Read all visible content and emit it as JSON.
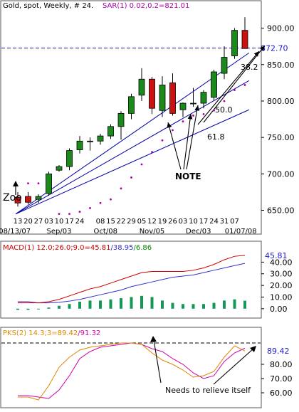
{
  "chart_data": [
    {
      "type": "candlestick",
      "header": {
        "symbol": "Gold, spot",
        "interval": "Weekly",
        "count": "# 24.",
        "study": "SAR(1) 0.02,0.2=821.01"
      },
      "ylim": [
        630,
        925
      ],
      "yticks": [
        "900.00",
        "850.00",
        "800.00",
        "750.00",
        "700.00",
        "650.00"
      ],
      "price_label": "872.70",
      "price_line": 872.7,
      "x_tick_labels": [
        "13",
        "20",
        "27",
        "03",
        "10",
        "17",
        "24",
        "08",
        "15",
        "22",
        "29",
        "05",
        "12",
        "19",
        "26",
        "03",
        "10",
        "17",
        "24",
        "31",
        "07"
      ],
      "x_month_labels": [
        "08/13/07",
        "Sep/03",
        "Oct/08",
        "Nov/05",
        "Dec/03",
        "01/07/08"
      ],
      "candles": [
        {
          "date": "08/13/07",
          "open": 668,
          "high": 675,
          "low": 655,
          "close": 660
        },
        {
          "date": "08/20/07",
          "open": 669,
          "high": 675,
          "low": 658,
          "close": 661
        },
        {
          "date": "08/27/07",
          "open": 665,
          "high": 672,
          "low": 660,
          "close": 669
        },
        {
          "date": "09/03/07",
          "open": 673,
          "high": 703,
          "low": 670,
          "close": 700
        },
        {
          "date": "09/10/07",
          "open": 705,
          "high": 712,
          "low": 703,
          "close": 710
        },
        {
          "date": "09/17/07",
          "open": 710,
          "high": 735,
          "low": 705,
          "close": 732
        },
        {
          "date": "09/24/07",
          "open": 733,
          "high": 752,
          "low": 728,
          "close": 745
        },
        {
          "date": "10/01/07",
          "open": 745,
          "high": 750,
          "low": 732,
          "close": 745
        },
        {
          "date": "10/08/07",
          "open": 745,
          "high": 755,
          "low": 740,
          "close": 752
        },
        {
          "date": "10/15/07",
          "open": 752,
          "high": 768,
          "low": 748,
          "close": 765
        },
        {
          "date": "10/22/07",
          "open": 765,
          "high": 786,
          "low": 747,
          "close": 783
        },
        {
          "date": "10/29/07",
          "open": 783,
          "high": 810,
          "low": 775,
          "close": 806
        },
        {
          "date": "11/05/07",
          "open": 808,
          "high": 845,
          "low": 800,
          "close": 830
        },
        {
          "date": "11/12/07",
          "open": 830,
          "high": 833,
          "low": 782,
          "close": 790
        },
        {
          "date": "11/19/07",
          "open": 787,
          "high": 834,
          "low": 778,
          "close": 822
        },
        {
          "date": "11/26/07",
          "open": 825,
          "high": 838,
          "low": 780,
          "close": 783
        },
        {
          "date": "12/03/07",
          "open": 788,
          "high": 798,
          "low": 778,
          "close": 797
        },
        {
          "date": "12/10/07",
          "open": 797,
          "high": 818,
          "low": 792,
          "close": 797
        },
        {
          "date": "12/17/07",
          "open": 797,
          "high": 815,
          "low": 790,
          "close": 812
        },
        {
          "date": "12/24/07",
          "open": 805,
          "high": 843,
          "low": 800,
          "close": 840
        },
        {
          "date": "12/31/07",
          "open": 838,
          "high": 875,
          "low": 830,
          "close": 860
        },
        {
          "date": "01/07/08",
          "open": 862,
          "high": 900,
          "low": 858,
          "close": 897
        },
        {
          "date": "01/14/08",
          "open": 897,
          "high": 915,
          "low": 872,
          "close": 872
        }
      ],
      "sar": [
        {
          "i": 1,
          "v": 687
        },
        {
          "i": 2,
          "v": 687
        },
        {
          "i": 4,
          "v": 645
        },
        {
          "i": 5,
          "v": 645
        },
        {
          "i": 6,
          "v": 648
        },
        {
          "i": 7,
          "v": 653
        },
        {
          "i": 8,
          "v": 660
        },
        {
          "i": 9,
          "v": 665
        },
        {
          "i": 10,
          "v": 680
        },
        {
          "i": 11,
          "v": 695
        },
        {
          "i": 12,
          "v": 713
        },
        {
          "i": 13,
          "v": 730
        },
        {
          "i": 14,
          "v": 746
        },
        {
          "i": 15,
          "v": 760
        },
        {
          "i": 16,
          "v": 772
        },
        {
          "i": 17,
          "v": 780
        },
        {
          "i": 18,
          "v": 782
        },
        {
          "i": 19,
          "v": 787
        },
        {
          "i": 20,
          "v": 800
        },
        {
          "i": 21,
          "v": 815
        },
        {
          "i": 22,
          "v": 822
        }
      ],
      "fan_lines": {
        "origin": {
          "i": -0.2,
          "v": 645
        },
        "ends": [
          {
            "i": 22.4,
            "v": 866
          },
          {
            "i": 22.4,
            "v": 828
          },
          {
            "i": 22.4,
            "v": 788
          }
        ],
        "labels": [
          "38.2",
          "50.0",
          "61.8"
        ]
      },
      "annotation": "NOTE",
      "zoom_label": "Zoo"
    },
    {
      "type": "line+bar",
      "header": {
        "name": "MACD(1) 12.0;26.0;9.0=45.81",
        "v2": "/38.95",
        "v3": "/6.86"
      },
      "ylim": [
        -5,
        50
      ],
      "yticks": [
        "40.00",
        "30.00",
        "20.00",
        "10.00",
        "0.00"
      ],
      "value_label": "45.81",
      "macd": [
        5,
        5,
        5,
        6,
        8,
        11,
        14,
        17,
        19,
        22,
        25,
        28,
        31,
        32,
        32,
        32,
        32,
        33,
        35,
        38,
        42,
        45,
        45.8
      ],
      "signal": [
        6,
        6,
        5,
        5,
        5.5,
        6.5,
        8,
        10,
        12,
        14,
        16,
        19,
        21,
        23,
        25,
        27,
        28,
        29,
        31,
        33,
        35,
        37,
        38.95
      ],
      "histogram": [
        -1,
        -1,
        0,
        1,
        2.5,
        4,
        6,
        7,
        7,
        8,
        9,
        10,
        11,
        10,
        7,
        5,
        4,
        4,
        4,
        5,
        7,
        8,
        6.86
      ]
    },
    {
      "type": "line",
      "header": {
        "name": "PKS(2) 14.3;3=89.42",
        "v2": "/91.32"
      },
      "ylim": [
        52,
        100
      ],
      "yticks": [
        "80.00",
        "70.00",
        "60.00"
      ],
      "value_label": "89.42",
      "reference_level": 95,
      "fast": [
        57,
        57,
        55,
        65,
        78,
        85,
        90,
        92,
        93,
        94,
        95,
        95,
        94,
        88,
        83,
        80,
        76,
        71,
        72,
        75,
        85,
        93,
        89.42
      ],
      "slow": [
        58,
        58,
        57,
        56,
        62,
        72,
        84,
        89,
        92,
        93,
        94,
        95,
        94,
        91,
        89,
        84,
        80,
        74,
        70,
        72,
        82,
        88,
        91.32
      ],
      "annotation": "Needs to relieve itself"
    }
  ]
}
